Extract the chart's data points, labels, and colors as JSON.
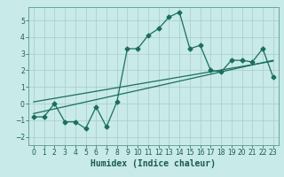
{
  "title": "",
  "xlabel": "Humidex (Indice chaleur)",
  "ylabel": "",
  "bg_color": "#c8eae8",
  "grid_color": "#a8ccc8",
  "line_color": "#1a6e5e",
  "xlim": [
    -0.5,
    23.5
  ],
  "ylim": [
    -2.5,
    5.8
  ],
  "xticks": [
    0,
    1,
    2,
    3,
    4,
    5,
    6,
    7,
    8,
    9,
    10,
    11,
    12,
    13,
    14,
    15,
    16,
    17,
    18,
    19,
    20,
    21,
    22,
    23
  ],
  "yticks": [
    -2,
    -1,
    0,
    1,
    2,
    3,
    4,
    5
  ],
  "data_x": [
    0,
    1,
    2,
    3,
    4,
    5,
    6,
    7,
    8,
    9,
    10,
    11,
    12,
    13,
    14,
    15,
    16,
    17,
    18,
    19,
    20,
    21,
    22,
    23
  ],
  "data_y": [
    -0.8,
    -0.8,
    -0.0,
    -1.1,
    -1.1,
    -1.5,
    -0.2,
    -1.4,
    0.1,
    3.3,
    3.3,
    4.1,
    4.5,
    5.2,
    5.5,
    3.3,
    3.5,
    2.0,
    1.9,
    2.6,
    2.6,
    2.5,
    3.3,
    1.6
  ],
  "trend1_x": [
    0,
    23
  ],
  "trend1_y": [
    -0.6,
    2.6
  ],
  "trend2_x": [
    0,
    23
  ],
  "trend2_y": [
    0.1,
    2.55
  ],
  "marker": "D",
  "markersize": 2.5,
  "linewidth": 0.9,
  "xlabel_fontsize": 7,
  "tick_fontsize": 5.5
}
